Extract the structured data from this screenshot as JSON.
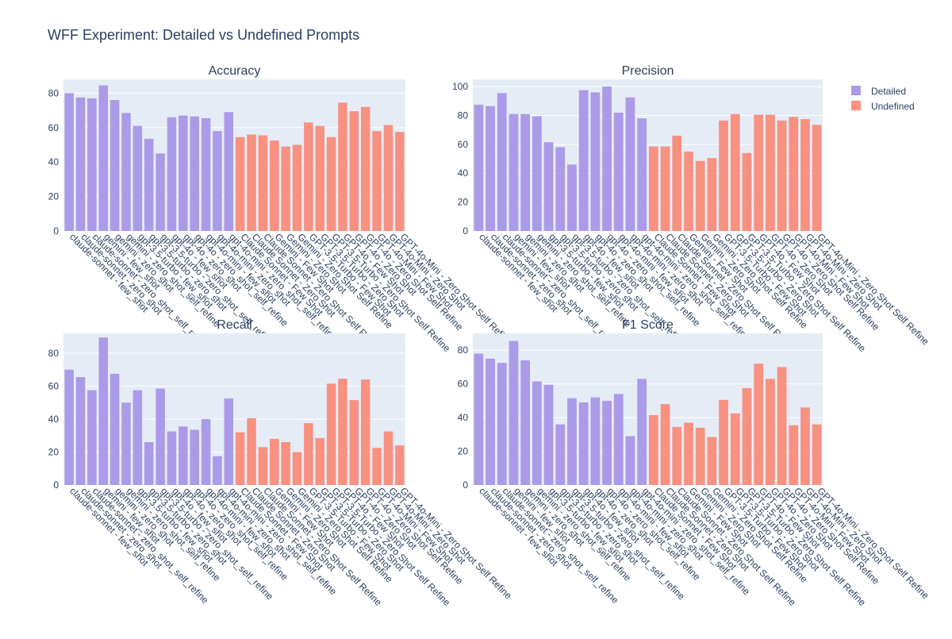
{
  "title": "WFF Experiment: Detailed vs Undefined Prompts",
  "legend": {
    "placement": "top-right",
    "items": [
      {
        "name": "Detailed",
        "color": "#ab9ae8"
      },
      {
        "name": "Undefined",
        "color": "#f89180"
      }
    ]
  },
  "colors": {
    "plot_bg": "#e5ecf6",
    "grid": "#ffffff",
    "text": "#2a3f5f"
  },
  "chart_data": [
    {
      "type": "bar",
      "title": "Accuracy",
      "ylim": [
        0,
        88
      ],
      "yticks": [
        0,
        20,
        40,
        60,
        80
      ],
      "grid": true,
      "categories": [
        "claude-sonnet - few_shot",
        "claude-sonnet - zero_shot",
        "claude-sonnet - zero_shot_self_refine",
        "gemini - few_shot",
        "gemini - zero_shot",
        "gemini - zero_shot_self_refine",
        "gpt-3.5-turbo - few_shot",
        "gpt-3.5-turbo - zero_shot",
        "gpt-3.5-turbo - zero_shot_self_refine",
        "gpt-4o - few_shot",
        "gpt-4o - zero_shot",
        "gpt-4o - zero_shot_self_refine",
        "gpt-4o-mini - few_shot",
        "gpt-4o-mini - zero_shot",
        "gpt-4o-mini - zero_shot_self_refine",
        "Claude Sonnet - Few Shot",
        "Claude Sonnet - Zero Shot",
        "Claude Sonnet - Zero Shot Self Refine",
        "Gemini - Few Shot",
        "Gemini - Zero Shot",
        "Gemini - Zero Shot Self Refine",
        "GPT-3.5-Turbo - Few Shot",
        "GPT-3.5-Turbo - Zero Shot",
        "GPT-3.5-Turbo - Zero Shot Self Refine",
        "GPT-4o - Few Shot",
        "GPT-4o - Zero Shot",
        "GPT-4o - Zero Shot Self Refine",
        "GPT-4o-Mini - Few Shot",
        "GPT-4o-Mini - Zero Shot",
        "GPT-4o-Mini - Zero Shot Self Refine"
      ],
      "series": [
        {
          "name": "Detailed",
          "values": [
            80,
            77.5,
            77,
            84.5,
            76,
            68.5,
            61,
            53.5,
            45,
            66,
            67,
            66.5,
            65.5,
            58,
            69,
            null,
            null,
            null,
            null,
            null,
            null,
            null,
            null,
            null,
            null,
            null,
            null,
            null,
            null,
            null
          ]
        },
        {
          "name": "Undefined",
          "values": [
            null,
            null,
            null,
            null,
            null,
            null,
            null,
            null,
            null,
            null,
            null,
            null,
            null,
            null,
            null,
            54.5,
            56,
            55.5,
            52.5,
            49,
            50,
            63,
            61,
            54.5,
            74.5,
            69.5,
            72,
            58,
            61.5,
            57.5
          ]
        }
      ]
    },
    {
      "type": "bar",
      "title": "Precision",
      "ylim": [
        0,
        105
      ],
      "yticks": [
        0,
        20,
        40,
        60,
        80,
        100
      ],
      "grid": true,
      "categories": [
        "claude-sonnet - few_shot",
        "claude-sonnet - zero_shot",
        "claude-sonnet - zero_shot_self_refine",
        "gemini - few_shot",
        "gemini - zero_shot",
        "gemini - zero_shot_self_refine",
        "gpt-3.5-turbo - few_shot",
        "gpt-3.5-turbo - zero_shot",
        "gpt-3.5-turbo - zero_shot_self_refine",
        "gpt-4o - few_shot",
        "gpt-4o - zero_shot",
        "gpt-4o - zero_shot_self_refine",
        "gpt-4o-mini - few_shot",
        "gpt-4o-mini - zero_shot",
        "gpt-4o-mini - zero_shot_self_refine",
        "Claude Sonnet - Few Shot",
        "Claude Sonnet - Zero Shot",
        "Claude Sonnet - Zero Shot Self Refine",
        "Gemini - Few Shot",
        "Gemini - Zero Shot",
        "Gemini - Zero Shot Self Refine",
        "GPT-3.5-Turbo - Few Shot",
        "GPT-3.5-Turbo - Zero Shot",
        "GPT-3.5-Turbo - Zero Shot Self Refine",
        "GPT-4o - Few Shot",
        "GPT-4o - Zero Shot",
        "GPT-4o - Zero Shot Self Refine",
        "GPT-4o-Mini - Few Shot",
        "GPT-4o-Mini - Zero Shot",
        "GPT-4o-Mini - Zero Shot Self Refine"
      ],
      "series": [
        {
          "name": "Detailed",
          "values": [
            87.5,
            86.5,
            95.5,
            81,
            81,
            79.5,
            61.5,
            58,
            46,
            97.5,
            96,
            100,
            82,
            92.5,
            78,
            null,
            null,
            null,
            null,
            null,
            null,
            null,
            null,
            null,
            null,
            null,
            null,
            null,
            null,
            null
          ]
        },
        {
          "name": "Undefined",
          "values": [
            null,
            null,
            null,
            null,
            null,
            null,
            null,
            null,
            null,
            null,
            null,
            null,
            null,
            null,
            null,
            58.5,
            58.5,
            66,
            55,
            48.5,
            50.5,
            76.5,
            81,
            54,
            80.5,
            80.5,
            76.5,
            79,
            77.5,
            73.5
          ]
        }
      ]
    },
    {
      "type": "bar",
      "title": "Recall",
      "ylim": [
        0,
        92
      ],
      "yticks": [
        0,
        20,
        40,
        60,
        80
      ],
      "grid": true,
      "categories": [
        "claude-sonnet - few_shot",
        "claude-sonnet - zero_shot",
        "claude-sonnet - zero_shot_self_refine",
        "gemini - few_shot",
        "gemini - zero_shot",
        "gemini - zero_shot_self_refine",
        "gpt-3.5-turbo - few_shot",
        "gpt-3.5-turbo - zero_shot",
        "gpt-3.5-turbo - zero_shot_self_refine",
        "gpt-4o - few_shot",
        "gpt-4o - zero_shot",
        "gpt-4o - zero_shot_self_refine",
        "gpt-4o-mini - few_shot",
        "gpt-4o-mini - zero_shot",
        "gpt-4o-mini - zero_shot_self_refine",
        "Claude Sonnet - Few Shot",
        "Claude Sonnet - Zero Shot",
        "Claude Sonnet - Zero Shot Self Refine",
        "Gemini - Few Shot",
        "Gemini - Zero Shot",
        "Gemini - Zero Shot Self Refine",
        "GPT-3.5-Turbo - Few Shot",
        "GPT-3.5-Turbo - Zero Shot",
        "GPT-3.5-Turbo - Zero Shot Self Refine",
        "GPT-4o - Few Shot",
        "GPT-4o - Zero Shot",
        "GPT-4o - Zero Shot Self Refine",
        "GPT-4o-Mini - Few Shot",
        "GPT-4o-Mini - Zero Shot",
        "GPT-4o-Mini - Zero Shot Self Refine"
      ],
      "series": [
        {
          "name": "Detailed",
          "values": [
            70,
            65.5,
            57.5,
            89.5,
            67.5,
            50,
            57.5,
            26,
            58.5,
            32.5,
            35.5,
            33.5,
            40,
            17.5,
            52.5,
            null,
            null,
            null,
            null,
            null,
            null,
            null,
            null,
            null,
            null,
            null,
            null,
            null,
            null,
            null
          ]
        },
        {
          "name": "Undefined",
          "values": [
            null,
            null,
            null,
            null,
            null,
            null,
            null,
            null,
            null,
            null,
            null,
            null,
            null,
            null,
            null,
            32,
            40.5,
            23,
            28,
            26,
            20,
            37.5,
            28.5,
            61.5,
            64.5,
            51.5,
            64,
            22.5,
            32.5,
            24
          ]
        }
      ]
    },
    {
      "type": "bar",
      "title": "F1 Score",
      "ylim": [
        0,
        90
      ],
      "yticks": [
        0,
        20,
        40,
        60,
        80
      ],
      "grid": true,
      "categories": [
        "claude-sonnet - few_shot",
        "claude-sonnet - zero_shot",
        "claude-sonnet - zero_shot_self_refine",
        "gemini - few_shot",
        "gemini - zero_shot",
        "gemini - zero_shot_self_refine",
        "gpt-3.5-turbo - few_shot",
        "gpt-3.5-turbo - zero_shot",
        "gpt-3.5-turbo - zero_shot_self_refine",
        "gpt-4o - few_shot",
        "gpt-4o - zero_shot",
        "gpt-4o - zero_shot_self_refine",
        "gpt-4o-mini - few_shot",
        "gpt-4o-mini - zero_shot",
        "gpt-4o-mini - zero_shot_self_refine",
        "Claude Sonnet - Few Shot",
        "Claude Sonnet - Zero Shot",
        "Claude Sonnet - Zero Shot Self Refine",
        "Gemini - Few Shot",
        "Gemini - Zero Shot",
        "Gemini - Zero Shot Self Refine",
        "GPT-3.5-Turbo - Few Shot",
        "GPT-3.5-Turbo - Zero Shot",
        "GPT-3.5-Turbo - Zero Shot Self Refine",
        "GPT-4o - Few Shot",
        "GPT-4o - Zero Shot",
        "GPT-4o - Zero Shot Self Refine",
        "GPT-4o-Mini - Few Shot",
        "GPT-4o-Mini - Zero Shot",
        "GPT-4o-Mini - Zero Shot Self Refine"
      ],
      "series": [
        {
          "name": "Detailed",
          "values": [
            78,
            75,
            72.5,
            85.5,
            74,
            61.5,
            59.5,
            36,
            51.5,
            49,
            52,
            50,
            54,
            29,
            63,
            null,
            null,
            null,
            null,
            null,
            null,
            null,
            null,
            null,
            null,
            null,
            null,
            null,
            null,
            null
          ]
        },
        {
          "name": "Undefined",
          "values": [
            null,
            null,
            null,
            null,
            null,
            null,
            null,
            null,
            null,
            null,
            null,
            null,
            null,
            null,
            null,
            41.5,
            48,
            34.5,
            37,
            34,
            28.5,
            50.5,
            42.5,
            57.5,
            72,
            63,
            70,
            35.5,
            46,
            36
          ]
        }
      ]
    }
  ]
}
